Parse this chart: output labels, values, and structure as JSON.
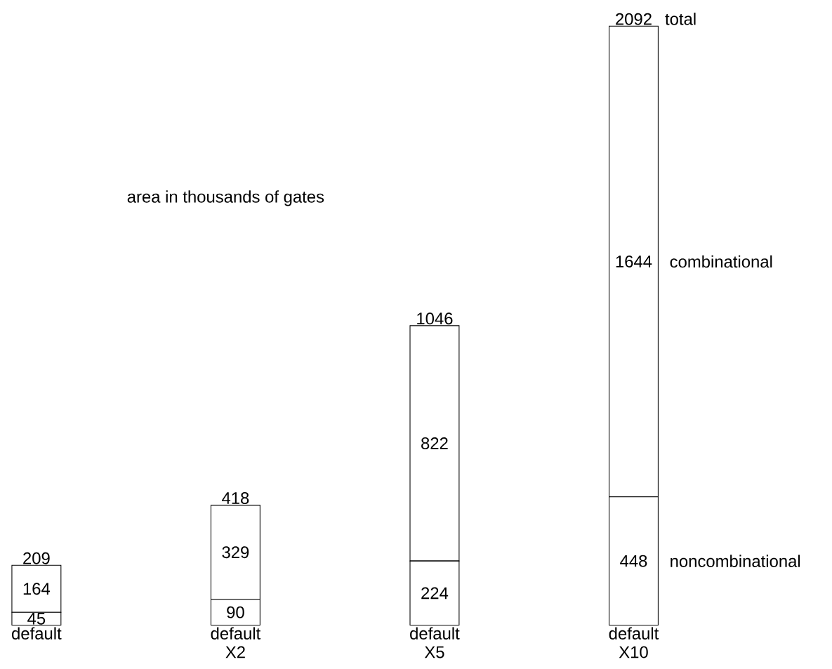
{
  "chart_data": {
    "type": "bar",
    "stacked": true,
    "title": "area in thousands of gates",
    "categories": [
      "default",
      "default X2",
      "default X5",
      "default X10"
    ],
    "ylim": [
      0,
      2100
    ],
    "series": [
      {
        "name": "noncombinational",
        "color": "#ffffff",
        "values": [
          45,
          90,
          224,
          448
        ]
      },
      {
        "name": "combinational",
        "color": "#ffffff",
        "values": [
          164,
          329,
          822,
          1644
        ]
      }
    ],
    "data_labels": true,
    "totals": [
      "209",
      "418",
      "1046",
      "2092"
    ],
    "annotations": [
      {
        "text": "total",
        "x": "default X10",
        "y": 2092
      }
    ],
    "grid": false
  }
}
